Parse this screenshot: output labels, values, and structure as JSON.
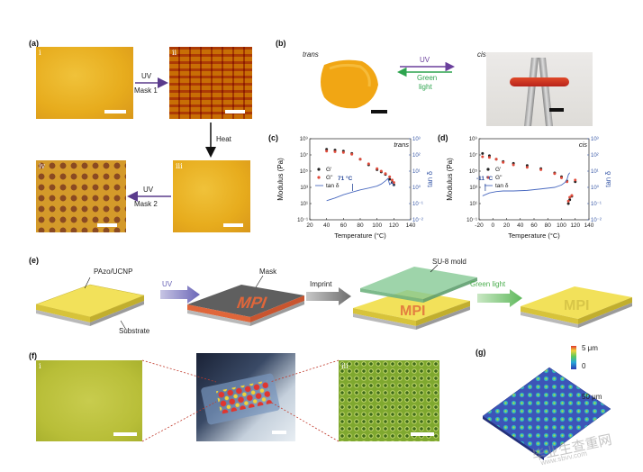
{
  "panel_a": {
    "label": "(a)",
    "sub": [
      "i",
      "ii",
      "iii",
      "iv"
    ],
    "step1": {
      "top": "UV",
      "bottom": "Mask 1"
    },
    "step2": "Heat",
    "step3": {
      "top": "UV",
      "bottom": "Mask 2"
    },
    "colors": {
      "uv_arrow": "#5a3b8c",
      "film": "#e7ac1d"
    }
  },
  "panel_b": {
    "label": "(b)",
    "left_state": "trans",
    "right_state": "cis",
    "forward": "UV",
    "reverse_line1": "Green",
    "reverse_line2": "light",
    "colors": {
      "uv": "#6a3f9c",
      "green": "#2da44e"
    }
  },
  "panel_c": {
    "label": "(c)",
    "state": "trans",
    "annotation": "71 °C",
    "chart_data": {
      "type": "line",
      "xlabel": "Temperature (°C)",
      "ylabel": "Modulus (Pa)",
      "y2label": "tan δ",
      "xlim": [
        20,
        140
      ],
      "xticks": [
        "20",
        "40",
        "60",
        "80",
        "100",
        "120",
        "140"
      ],
      "ylog": true,
      "ylim_exp": [
        -1,
        9
      ],
      "yticks": [
        "10⁻¹",
        "10¹",
        "10³",
        "10⁵",
        "10⁷",
        "10⁹"
      ],
      "y2log": true,
      "y2lim_exp": [
        -2,
        3
      ],
      "y2ticks": [
        "10⁻²",
        "10⁻¹",
        "10⁰",
        "10¹",
        "10²",
        "10³"
      ],
      "legend": [
        "G'",
        "G''",
        "tan δ"
      ],
      "series": [
        {
          "name": "G'",
          "x": [
            40,
            50,
            60,
            70,
            80,
            90,
            100,
            105,
            110,
            115,
            118,
            120
          ],
          "y": [
            50000000.0,
            40000000.0,
            30000000.0,
            15000000.0,
            3000000.0,
            600000.0,
            150000.0,
            80000.0,
            40000.0,
            10000.0,
            4000.0,
            2000.0
          ]
        },
        {
          "name": "G''",
          "x": [
            40,
            50,
            60,
            70,
            80,
            90,
            100,
            105,
            110,
            115,
            118,
            120
          ],
          "y": [
            30000000.0,
            25000000.0,
            20000000.0,
            12000000.0,
            3000000.0,
            800000.0,
            200000.0,
            100000.0,
            50000.0,
            20000.0,
            8000.0,
            4000.0
          ]
        },
        {
          "name": "tan δ",
          "x": [
            40,
            50,
            60,
            70,
            80,
            90,
            100,
            105,
            110,
            113,
            115,
            118,
            120
          ],
          "y": [
            0.15,
            0.22,
            0.35,
            0.5,
            0.7,
            0.9,
            1.2,
            1.6,
            2.5,
            3.5,
            1.5,
            2.0,
            1.2
          ]
        }
      ]
    }
  },
  "panel_d": {
    "label": "(d)",
    "state": "cis",
    "annotation": "-11 °C",
    "chart_data": {
      "type": "line",
      "xlabel": "Temperature (°C)",
      "ylabel": "Modulus (Pa)",
      "y2label": "tan δ",
      "xlim": [
        -20,
        140
      ],
      "xticks": [
        "-20",
        "0",
        "20",
        "40",
        "60",
        "80",
        "100",
        "120",
        "140"
      ],
      "ylog": true,
      "ylim_exp": [
        -1,
        9
      ],
      "yticks": [
        "10⁻¹",
        "10¹",
        "10³",
        "10⁵",
        "10⁷",
        "10⁹"
      ],
      "y2log": true,
      "y2lim_exp": [
        -2,
        3
      ],
      "y2ticks": [
        "10⁻²",
        "10⁻¹",
        "10⁰",
        "10¹",
        "10²",
        "10³"
      ],
      "legend": [
        "G'",
        "G''",
        "tan δ"
      ],
      "series": [
        {
          "name": "G'",
          "x": [
            -15,
            -5,
            5,
            15,
            30,
            50,
            70,
            90,
            100,
            108,
            110,
            112,
            115,
            120
          ],
          "y": [
            15000000.0,
            8000000.0,
            3000000.0,
            1500000.0,
            900000.0,
            500000.0,
            200000.0,
            60000.0,
            20000.0,
            6000.0,
            10,
            30,
            80,
            5000.0
          ]
        },
        {
          "name": "G''",
          "x": [
            -15,
            -5,
            5,
            15,
            30,
            50,
            70,
            90,
            100,
            108,
            110,
            112,
            115,
            120
          ],
          "y": [
            6000000.0,
            5000000.0,
            3000000.0,
            1200000.0,
            600000.0,
            300000.0,
            150000.0,
            50000.0,
            15000.0,
            5000.0,
            20,
            60,
            100,
            8000.0
          ]
        },
        {
          "name": "tan δ",
          "x": [
            -15,
            -5,
            5,
            15,
            30,
            50,
            70,
            90,
            100,
            105,
            108,
            110,
            112
          ],
          "y": [
            0.3,
            0.45,
            0.55,
            0.6,
            0.6,
            0.65,
            0.8,
            1.0,
            1.4,
            2.0,
            3.0,
            6.0,
            8.0
          ]
        }
      ]
    }
  },
  "panel_e": {
    "label": "(e)",
    "material": "PAzo/UCNP",
    "substrate": "Substrate",
    "uv": "UV",
    "mask": "Mask",
    "mask_text": "MPI",
    "imprint": "Imprint",
    "mold": "SU-8 mold",
    "green_light": "Green light",
    "colors": {
      "film": "#f2e15a",
      "mask": "#5f5f5f",
      "pattern": "#e0663a",
      "mold": "#86c995",
      "green": "#4cae4f"
    }
  },
  "panel_f": {
    "label": "(f)",
    "sub_left": "i",
    "sub_right": "iii"
  },
  "panel_g": {
    "label": "(g)",
    "scale_max": "5 μm",
    "scale_min": "0",
    "size_label": "50 μm"
  },
  "watermark": {
    "text": "毕业生查重网",
    "url": "www.sbvv.com"
  }
}
